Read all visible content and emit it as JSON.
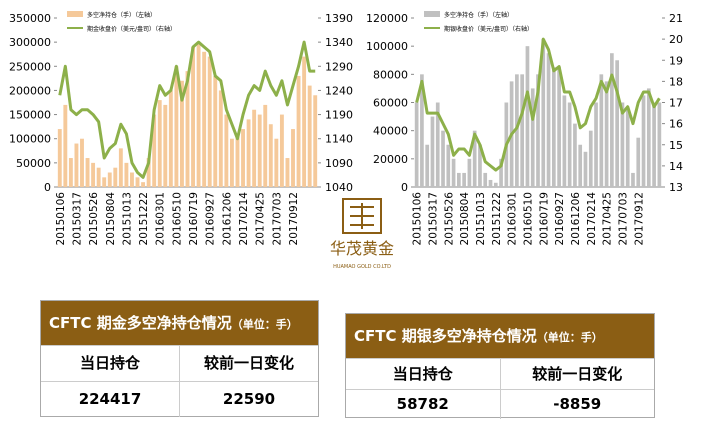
{
  "chart_data": [
    {
      "type": "bar",
      "categories": [
        "20150106",
        null,
        null,
        "20150317",
        null,
        null,
        "20150526",
        null,
        null,
        "20150804",
        null,
        null,
        "20151013",
        null,
        null,
        "20151222",
        null,
        null,
        "20160301",
        null,
        null,
        "20160510",
        null,
        null,
        "20160719",
        null,
        null,
        "20160927",
        null,
        null,
        "20161206",
        null,
        null,
        "20170214",
        null,
        null,
        "20170425",
        null,
        null,
        "20170703",
        null,
        null,
        "20170912",
        null,
        null,
        null,
        null
      ],
      "series": [
        {
          "name": "多空净持仓（手）（左轴）",
          "type": "bar",
          "color": "#f5c99a",
          "values": [
            120000,
            170000,
            60000,
            90000,
            100000,
            60000,
            50000,
            40000,
            20000,
            30000,
            40000,
            80000,
            50000,
            30000,
            20000,
            10000,
            60000,
            150000,
            180000,
            170000,
            200000,
            250000,
            220000,
            240000,
            290000,
            300000,
            280000,
            270000,
            230000,
            200000,
            150000,
            100000,
            110000,
            120000,
            140000,
            160000,
            150000,
            170000,
            130000,
            100000,
            150000,
            60000,
            120000,
            230000,
            270000,
            210000,
            190000
          ]
        },
        {
          "name": "期金收盘价（美元/盎司）（右轴）",
          "type": "line",
          "axis": "y2",
          "color": "#8db04a",
          "values": [
            1230,
            1290,
            1200,
            1190,
            1200,
            1200,
            1190,
            1175,
            1100,
            1120,
            1130,
            1170,
            1150,
            1090,
            1070,
            1060,
            1090,
            1200,
            1250,
            1230,
            1240,
            1290,
            1220,
            1260,
            1330,
            1340,
            1330,
            1320,
            1270,
            1260,
            1200,
            1170,
            1140,
            1190,
            1230,
            1250,
            1240,
            1280,
            1250,
            1230,
            1260,
            1210,
            1250,
            1290,
            1340,
            1280,
            1280
          ]
        }
      ],
      "ylim": [
        0,
        350000
      ],
      "yticks": [
        0,
        50000,
        100000,
        150000,
        200000,
        250000,
        300000,
        350000
      ],
      "y2lim": [
        1040,
        1390
      ],
      "y2ticks": [
        1040,
        1090,
        1140,
        1190,
        1240,
        1290,
        1340,
        1390
      ]
    },
    {
      "type": "bar",
      "categories": [
        "20150106",
        null,
        null,
        "20150317",
        null,
        null,
        "20150526",
        null,
        null,
        "20150804",
        null,
        null,
        "20151013",
        null,
        null,
        "20151222",
        null,
        null,
        "20160301",
        null,
        null,
        "20160510",
        null,
        null,
        "20160719",
        null,
        null,
        "20160927",
        null,
        null,
        "20161206",
        null,
        null,
        "20170214",
        null,
        null,
        "20170425",
        null,
        null,
        "20170703",
        null,
        null,
        "20170912",
        null,
        null,
        null,
        null
      ],
      "series": [
        {
          "name": "多空净持仓（手）（左轴）",
          "type": "bar",
          "color": "#c0c0c0",
          "values": [
            60000,
            80000,
            30000,
            50000,
            60000,
            40000,
            30000,
            20000,
            10000,
            10000,
            20000,
            40000,
            30000,
            10000,
            5000,
            3000,
            20000,
            60000,
            75000,
            80000,
            80000,
            100000,
            70000,
            80000,
            105000,
            95000,
            85000,
            85000,
            65000,
            60000,
            45000,
            30000,
            25000,
            40000,
            60000,
            80000,
            75000,
            95000,
            90000,
            60000,
            55000,
            10000,
            35000,
            65000,
            70000,
            60000,
            60000
          ]
        },
        {
          "name": "期银收盘价（美元/盎司）（右轴）",
          "type": "line",
          "axis": "y2",
          "color": "#8db04a",
          "values": [
            17,
            18,
            16.5,
            16.5,
            16.5,
            16,
            15.5,
            14.5,
            14.8,
            14.8,
            14.5,
            15.5,
            15,
            14.2,
            14,
            13.8,
            14,
            15,
            15.5,
            15.8,
            16.5,
            17.5,
            16.2,
            17.5,
            20,
            19.5,
            18.5,
            18.7,
            17.5,
            17.5,
            16.8,
            15.8,
            16,
            16.8,
            17.2,
            18,
            17.5,
            18.3,
            17.5,
            16.5,
            16.8,
            16,
            17,
            17.5,
            17.5,
            16.8,
            17.2
          ]
        }
      ],
      "ylim": [
        0,
        120000
      ],
      "yticks": [
        0,
        20000,
        40000,
        60000,
        80000,
        100000,
        120000
      ],
      "y2lim": [
        13,
        21
      ],
      "y2ticks": [
        13,
        14,
        15,
        16,
        17,
        18,
        19,
        20,
        21
      ]
    }
  ],
  "logo": {
    "name": "华茂黄金",
    "subtitle": "HUAMAO GOLD CO.LTD"
  },
  "tables": [
    {
      "title": "CFTC 期金多空净持仓情况",
      "unit": "（单位：手）",
      "headers": [
        "当日持仓",
        "较前一日变化"
      ],
      "values": [
        "224417",
        "22590"
      ]
    },
    {
      "title": "CFTC 期银多空净持仓情况",
      "unit": "（单位：手）",
      "headers": [
        "当日持仓",
        "较前一日变化"
      ],
      "values": [
        "58782",
        "-8859"
      ]
    }
  ]
}
